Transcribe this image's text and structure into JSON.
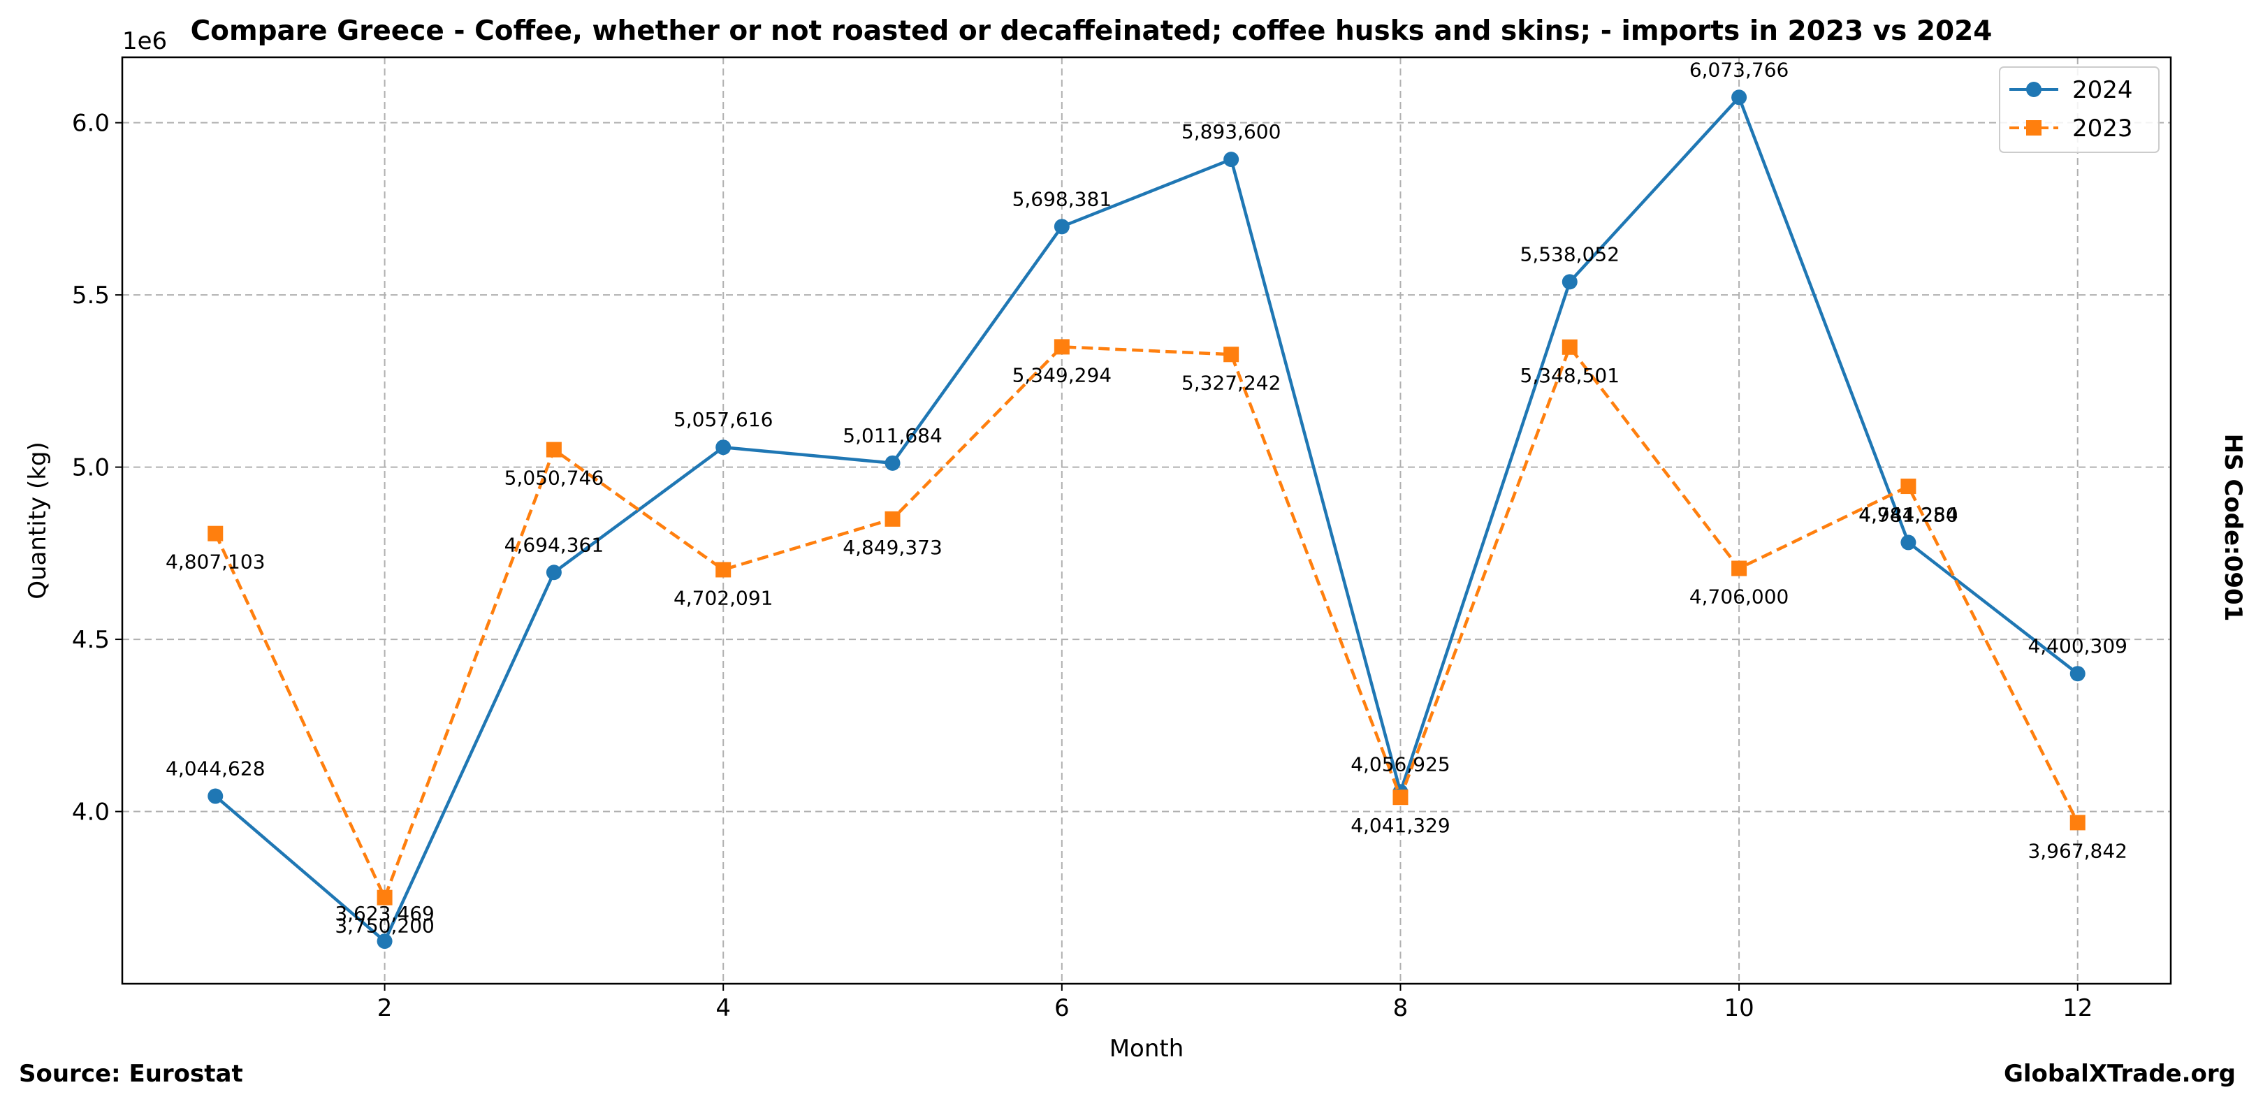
{
  "chart_data": {
    "type": "line",
    "title": "Compare Greece - Coffee, whether or not roasted or decaffeinated; coffee husks and skins; - imports in 2023 vs 2024",
    "xlabel": "Month",
    "ylabel": "Quantity (kg)",
    "y_offset_label": "1e6",
    "x_ticks": [
      "2",
      "4",
      "6",
      "8",
      "10",
      "12"
    ],
    "y_ticks": [
      "4.0",
      "4.5",
      "5.0",
      "5.5",
      "6.0"
    ],
    "xlim": [
      0.45,
      12.55
    ],
    "ylim": [
      3.5,
      6.19
    ],
    "grid": true,
    "legend_position": "top-right",
    "x": [
      1,
      2,
      3,
      4,
      5,
      6,
      7,
      8,
      9,
      10,
      11,
      12
    ],
    "series": [
      {
        "name": "2024",
        "color": "#1f77b4",
        "marker": "circle",
        "line_style": "solid",
        "values": [
          4044628,
          3623469,
          4694361,
          5057616,
          5011684,
          5698381,
          5893600,
          4056925,
          5538052,
          6073766,
          4781250,
          4400309
        ],
        "labels": [
          "4,044,628",
          "3,623,469",
          "4,694,361",
          "5,057,616",
          "5,011,684",
          "5,698,381",
          "5,893,600",
          "4,056,925",
          "5,538,052",
          "6,073,766",
          "4,781,250",
          "4,400,309"
        ]
      },
      {
        "name": "2023",
        "color": "#ff7f0e",
        "marker": "square",
        "line_style": "dashed",
        "values": [
          4807103,
          3750200,
          5050746,
          4702091,
          4849373,
          5349294,
          5327242,
          4041329,
          5348501,
          4706000,
          4944284,
          3967842
        ],
        "labels": [
          "4,807,103",
          "3,750,200",
          "5,050,746",
          "4,702,091",
          "4,849,373",
          "5,349,294",
          "5,327,242",
          "4,041,329",
          "5,348,501",
          "4,706,000",
          "4,944,284",
          "3,967,842"
        ]
      }
    ]
  },
  "side_label": "HS Code:0901",
  "footer": {
    "source": "Source: Eurostat",
    "brand": "GlobalXTrade.org"
  }
}
